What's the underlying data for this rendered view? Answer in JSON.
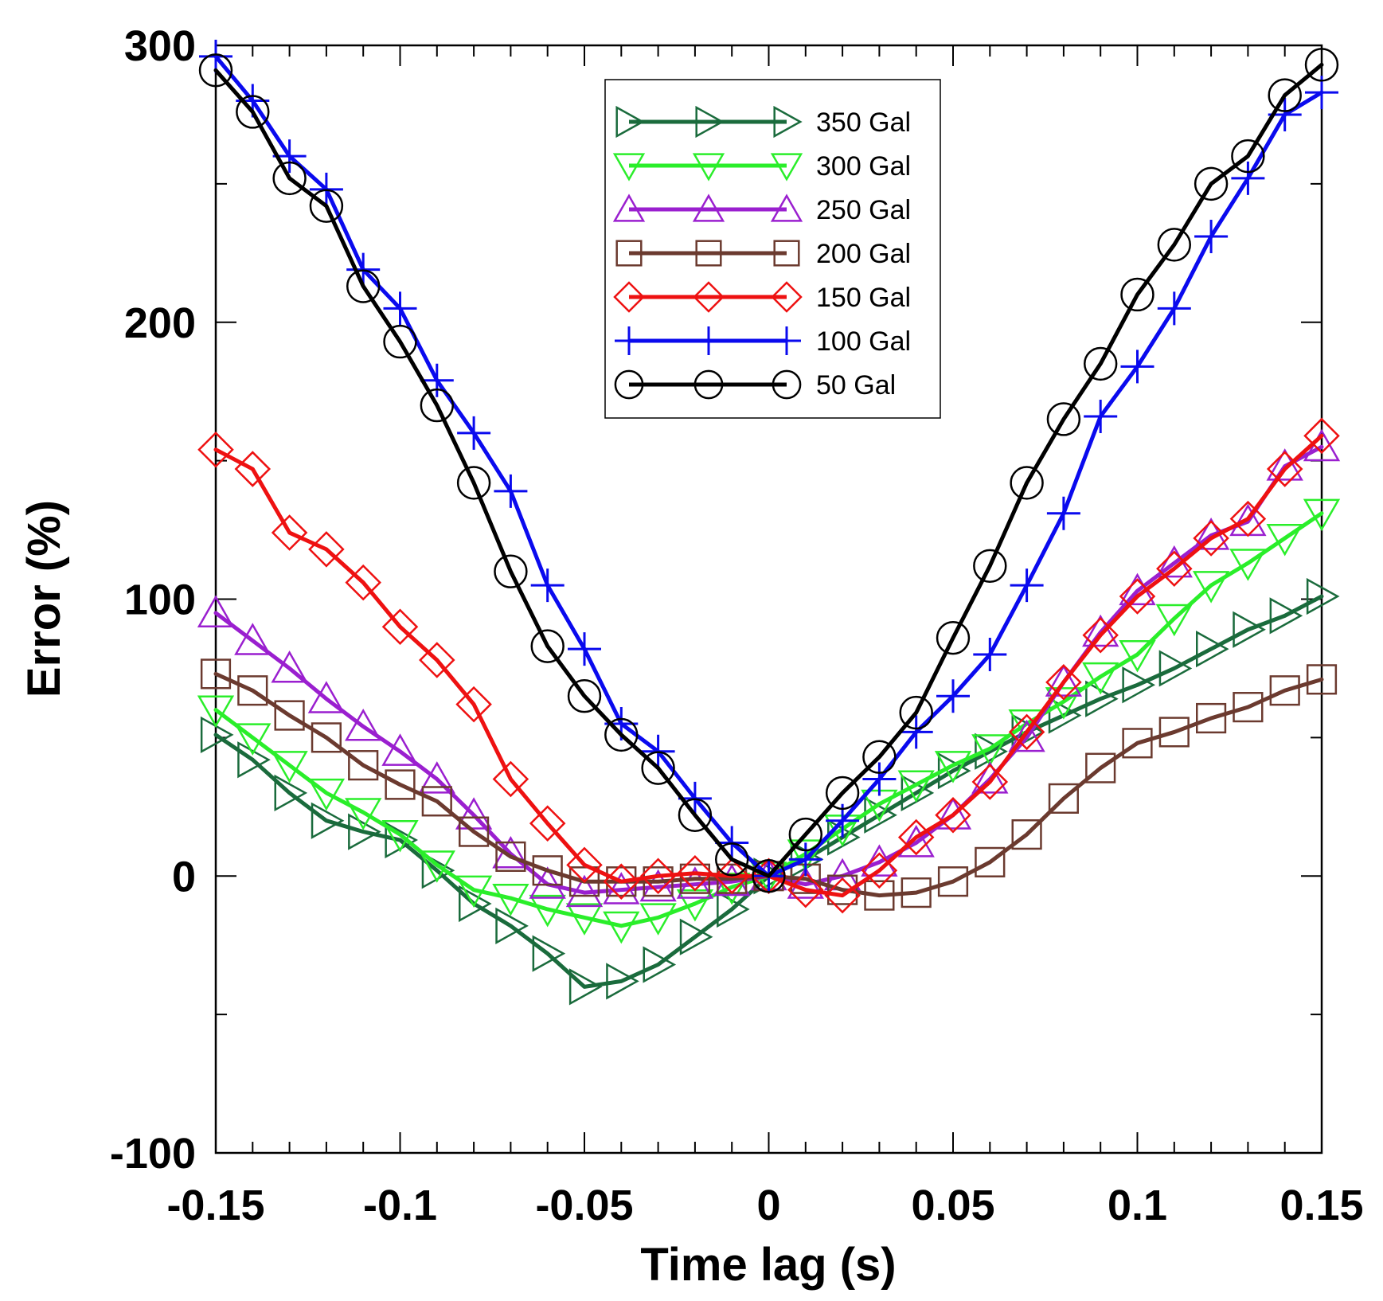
{
  "chart_data": {
    "type": "line",
    "title": "",
    "xlabel": "Time lag (s)",
    "ylabel": "Error (%)",
    "xlim": [
      -0.15,
      0.15
    ],
    "ylim": [
      -100,
      300
    ],
    "x_ticks": [
      -0.15,
      -0.1,
      -0.05,
      0,
      0.05,
      0.1,
      0.15
    ],
    "x_tick_labels": [
      "-0.15",
      "-0.1",
      "-0.05",
      "0",
      "0.05",
      "0.1",
      "0.15"
    ],
    "y_ticks": [
      -100,
      0,
      100,
      200,
      300
    ],
    "y_tick_labels": [
      "-100",
      "0",
      "100",
      "200",
      "300"
    ],
    "grid": false,
    "legend_position": "top-center",
    "x": [
      -0.15,
      -0.14,
      -0.13,
      -0.12,
      -0.11,
      -0.1,
      -0.09,
      -0.08,
      -0.07,
      -0.06,
      -0.05,
      -0.04,
      -0.03,
      -0.02,
      -0.01,
      0,
      0.01,
      0.02,
      0.03,
      0.04,
      0.05,
      0.06,
      0.07,
      0.08,
      0.09,
      0.1,
      0.11,
      0.12,
      0.13,
      0.14,
      0.15
    ],
    "series": [
      {
        "name": "350 Gal",
        "color": "#1a6b3c",
        "marker": "triangle-right",
        "values": [
          51,
          42,
          30,
          20,
          16,
          13,
          2,
          -10,
          -18,
          -28,
          -40,
          -38,
          -32,
          -22,
          -12,
          0,
          6,
          14,
          22,
          30,
          38,
          45,
          52,
          58,
          64,
          69,
          75,
          82,
          89,
          94,
          101
        ]
      },
      {
        "name": "300 Gal",
        "color": "#2aee2a",
        "marker": "triangle-down",
        "values": [
          60,
          50,
          40,
          30,
          23,
          15,
          4,
          -5,
          -8,
          -12,
          -15,
          -18,
          -15,
          -10,
          -4,
          0,
          8,
          17,
          26,
          33,
          40,
          46,
          55,
          63,
          72,
          80,
          93,
          105,
          113,
          122,
          131
        ]
      },
      {
        "name": "250 Gal",
        "color": "#9a1fcf",
        "marker": "triangle-up",
        "values": [
          95,
          85,
          75,
          64,
          54,
          45,
          35,
          22,
          8,
          -3,
          -6,
          -5,
          -4,
          -3,
          -2,
          0,
          -3,
          0,
          5,
          12,
          22,
          35,
          50,
          70,
          88,
          103,
          113,
          123,
          128,
          148,
          155
        ]
      },
      {
        "name": "200 Gal",
        "color": "#6b3a2f",
        "marker": "square",
        "values": [
          73,
          67,
          58,
          50,
          40,
          33,
          27,
          16,
          7,
          2,
          -2,
          -2,
          -2,
          -1,
          -1,
          0,
          -1,
          -5,
          -7,
          -6,
          -2,
          5,
          15,
          28,
          39,
          48,
          52,
          57,
          61,
          67,
          71
        ]
      },
      {
        "name": "150 Gal",
        "color": "#ee1111",
        "marker": "diamond",
        "values": [
          154,
          147,
          124,
          118,
          106,
          90,
          78,
          62,
          35,
          19,
          4,
          -2,
          0,
          1,
          0,
          0,
          -5,
          -7,
          2,
          14,
          22,
          34,
          52,
          70,
          87,
          101,
          111,
          122,
          129,
          147,
          159
        ]
      },
      {
        "name": "100 Gal",
        "color": "#0a0aee",
        "marker": "plus",
        "values": [
          296,
          280,
          260,
          248,
          219,
          205,
          179,
          160,
          139,
          105,
          82,
          55,
          45,
          28,
          12,
          0,
          6,
          20,
          35,
          52,
          65,
          80,
          105,
          131,
          166,
          184,
          205,
          231,
          252,
          275,
          283
        ]
      },
      {
        "name": "50 Gal",
        "color": "#000000",
        "marker": "circle",
        "values": [
          291,
          276,
          252,
          242,
          213,
          193,
          170,
          142,
          110,
          83,
          65,
          51,
          39,
          22,
          6,
          0,
          15,
          30,
          43,
          59,
          86,
          112,
          142,
          165,
          185,
          210,
          228,
          250,
          260,
          282,
          293
        ]
      }
    ]
  }
}
